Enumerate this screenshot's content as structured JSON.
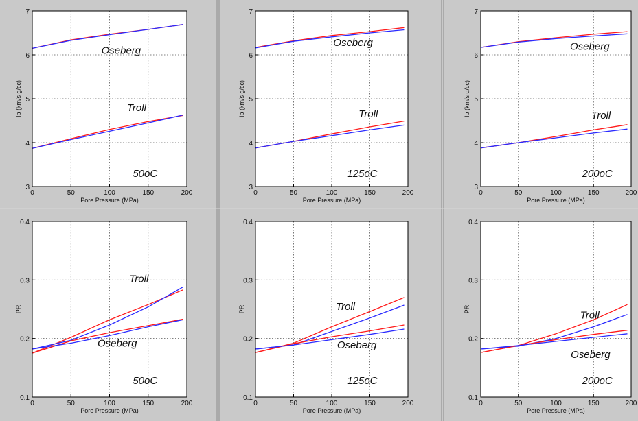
{
  "colors": {
    "background": "#c9c9c9",
    "plot_bg": "#ffffff",
    "series_red": "#ff1a1a",
    "series_blue": "#2a2aff",
    "grid": "#555555"
  },
  "chart_data": [
    {
      "id": "ip-50",
      "type": "line",
      "xlabel": "Pore Pressure (MPa)",
      "ylabel": "Ip (km/s g/cc)",
      "xlim": [
        0,
        200
      ],
      "ylim": [
        3,
        7
      ],
      "xticks": [
        "0",
        "50",
        "100",
        "150",
        "200"
      ],
      "yticks": [
        "3",
        "4",
        "5",
        "6",
        "7"
      ],
      "grid": true,
      "series": [
        {
          "color": "red",
          "x": [
            0,
            50,
            100,
            150,
            195
          ],
          "y": [
            6.15,
            6.34,
            6.47,
            6.58,
            6.69
          ]
        },
        {
          "color": "blue",
          "x": [
            0,
            50,
            100,
            150,
            195
          ],
          "y": [
            6.15,
            6.33,
            6.46,
            6.58,
            6.69
          ]
        },
        {
          "color": "red",
          "x": [
            0,
            50,
            100,
            150,
            195
          ],
          "y": [
            3.87,
            4.09,
            4.3,
            4.48,
            4.62
          ]
        },
        {
          "color": "blue",
          "x": [
            0,
            50,
            100,
            150,
            195
          ],
          "y": [
            3.87,
            4.07,
            4.26,
            4.45,
            4.63
          ]
        }
      ],
      "annotations": [
        {
          "text": "Oseberg",
          "x": 115,
          "y": 6.02
        },
        {
          "text": "Troll",
          "x": 135,
          "y": 4.72
        },
        {
          "text": "50oC",
          "x": 146,
          "y": 3.22
        }
      ]
    },
    {
      "id": "ip-125",
      "type": "line",
      "xlabel": "Pore Pressure (MPa)",
      "ylabel": "Ip (km/s g/cc)",
      "xlim": [
        0,
        200
      ],
      "ylim": [
        3,
        7
      ],
      "xticks": [
        "0",
        "50",
        "100",
        "150",
        "200"
      ],
      "yticks": [
        "3",
        "4",
        "5",
        "6",
        "7"
      ],
      "grid": true,
      "series": [
        {
          "color": "red",
          "x": [
            0,
            50,
            100,
            150,
            195
          ],
          "y": [
            6.17,
            6.32,
            6.44,
            6.53,
            6.62
          ]
        },
        {
          "color": "blue",
          "x": [
            0,
            50,
            100,
            150,
            195
          ],
          "y": [
            6.16,
            6.31,
            6.41,
            6.5,
            6.57
          ]
        },
        {
          "color": "red",
          "x": [
            0,
            50,
            100,
            150,
            195
          ],
          "y": [
            3.88,
            4.03,
            4.2,
            4.36,
            4.49
          ]
        },
        {
          "color": "blue",
          "x": [
            0,
            50,
            100,
            150,
            195
          ],
          "y": [
            3.88,
            4.03,
            4.16,
            4.29,
            4.4
          ]
        }
      ],
      "annotations": [
        {
          "text": "Oseberg",
          "x": 128,
          "y": 6.2
        },
        {
          "text": "Troll",
          "x": 148,
          "y": 4.58
        },
        {
          "text": "125oC",
          "x": 140,
          "y": 3.22
        }
      ]
    },
    {
      "id": "ip-200",
      "type": "line",
      "xlabel": "Pore Pressure (MPa)",
      "ylabel": "Ip (km/s g/cc)",
      "xlim": [
        0,
        200
      ],
      "ylim": [
        3,
        7
      ],
      "xticks": [
        "0",
        "50",
        "100",
        "150",
        "200"
      ],
      "yticks": [
        "3",
        "4",
        "5",
        "6",
        "7"
      ],
      "grid": true,
      "series": [
        {
          "color": "red",
          "x": [
            0,
            50,
            100,
            150,
            195
          ],
          "y": [
            6.17,
            6.3,
            6.39,
            6.47,
            6.53
          ]
        },
        {
          "color": "blue",
          "x": [
            0,
            50,
            100,
            150,
            195
          ],
          "y": [
            6.17,
            6.29,
            6.37,
            6.43,
            6.48
          ]
        },
        {
          "color": "red",
          "x": [
            0,
            50,
            100,
            150,
            195
          ],
          "y": [
            3.88,
            4.0,
            4.14,
            4.29,
            4.41
          ]
        },
        {
          "color": "blue",
          "x": [
            0,
            50,
            100,
            150,
            195
          ],
          "y": [
            3.88,
            4.0,
            4.11,
            4.22,
            4.31
          ]
        }
      ],
      "annotations": [
        {
          "text": "Oseberg",
          "x": 145,
          "y": 6.12
        },
        {
          "text": "Troll",
          "x": 160,
          "y": 4.55
        },
        {
          "text": "200oC",
          "x": 155,
          "y": 3.22
        }
      ]
    },
    {
      "id": "pr-50",
      "type": "line",
      "xlabel": "Pore Pressure (MPa)",
      "ylabel": "PR",
      "xlim": [
        0,
        200
      ],
      "ylim": [
        0.1,
        0.4
      ],
      "xticks": [
        "0",
        "50",
        "100",
        "150",
        "200"
      ],
      "yticks": [
        "0.1",
        "0.2",
        "0.3",
        "0.4"
      ],
      "grid": true,
      "series": [
        {
          "color": "red",
          "x": [
            0,
            50,
            100,
            150,
            195
          ],
          "y": [
            0.175,
            0.202,
            0.232,
            0.258,
            0.283
          ]
        },
        {
          "color": "blue",
          "x": [
            0,
            50,
            100,
            150,
            195
          ],
          "y": [
            0.182,
            0.197,
            0.223,
            0.254,
            0.288
          ]
        },
        {
          "color": "red",
          "x": [
            0,
            50,
            100,
            150,
            195
          ],
          "y": [
            0.175,
            0.196,
            0.21,
            0.222,
            0.233
          ]
        },
        {
          "color": "blue",
          "x": [
            0,
            50,
            100,
            150,
            195
          ],
          "y": [
            0.182,
            0.192,
            0.205,
            0.22,
            0.232
          ]
        }
      ],
      "annotations": [
        {
          "text": "Troll",
          "x": 138,
          "y": 0.296
        },
        {
          "text": "Oseberg",
          "x": 110,
          "y": 0.186
        },
        {
          "text": "50oC",
          "x": 146,
          "y": 0.122
        }
      ]
    },
    {
      "id": "pr-125",
      "type": "line",
      "xlabel": "Pore Pressure (MPa)",
      "ylabel": "PR",
      "xlim": [
        0,
        200
      ],
      "ylim": [
        0.1,
        0.4
      ],
      "xticks": [
        "0",
        "50",
        "100",
        "150",
        "200"
      ],
      "yticks": [
        "0.1",
        "0.2",
        "0.3",
        "0.4"
      ],
      "grid": true,
      "series": [
        {
          "color": "red",
          "x": [
            0,
            50,
            100,
            150,
            195
          ],
          "y": [
            0.176,
            0.192,
            0.22,
            0.246,
            0.27
          ]
        },
        {
          "color": "blue",
          "x": [
            0,
            50,
            100,
            150,
            195
          ],
          "y": [
            0.182,
            0.189,
            0.212,
            0.235,
            0.257
          ]
        },
        {
          "color": "red",
          "x": [
            0,
            50,
            100,
            150,
            195
          ],
          "y": [
            0.176,
            0.191,
            0.203,
            0.213,
            0.223
          ]
        },
        {
          "color": "blue",
          "x": [
            0,
            50,
            100,
            150,
            195
          ],
          "y": [
            0.182,
            0.189,
            0.198,
            0.207,
            0.216
          ]
        }
      ],
      "annotations": [
        {
          "text": "Troll",
          "x": 118,
          "y": 0.249
        },
        {
          "text": "Oseberg",
          "x": 133,
          "y": 0.183
        },
        {
          "text": "125oC",
          "x": 140,
          "y": 0.122
        }
      ]
    },
    {
      "id": "pr-200",
      "type": "line",
      "xlabel": "Pore Pressure (MPa)",
      "ylabel": "PR",
      "xlim": [
        0,
        200
      ],
      "ylim": [
        0.1,
        0.4
      ],
      "xticks": [
        "0",
        "50",
        "100",
        "150",
        "200"
      ],
      "yticks": [
        "0.1",
        "0.2",
        "0.3",
        "0.4"
      ],
      "grid": true,
      "series": [
        {
          "color": "red",
          "x": [
            0,
            50,
            100,
            150,
            195
          ],
          "y": [
            0.176,
            0.188,
            0.208,
            0.232,
            0.258
          ]
        },
        {
          "color": "blue",
          "x": [
            0,
            50,
            100,
            150,
            195
          ],
          "y": [
            0.182,
            0.187,
            0.2,
            0.22,
            0.241
          ]
        },
        {
          "color": "red",
          "x": [
            0,
            50,
            100,
            150,
            195
          ],
          "y": [
            0.176,
            0.188,
            0.198,
            0.207,
            0.214
          ]
        },
        {
          "color": "blue",
          "x": [
            0,
            50,
            100,
            150,
            195
          ],
          "y": [
            0.182,
            0.188,
            0.195,
            0.202,
            0.208
          ]
        }
      ],
      "annotations": [
        {
          "text": "Troll",
          "x": 145,
          "y": 0.234
        },
        {
          "text": "Oseberg",
          "x": 146,
          "y": 0.167
        },
        {
          "text": "200oC",
          "x": 155,
          "y": 0.122
        }
      ]
    }
  ]
}
